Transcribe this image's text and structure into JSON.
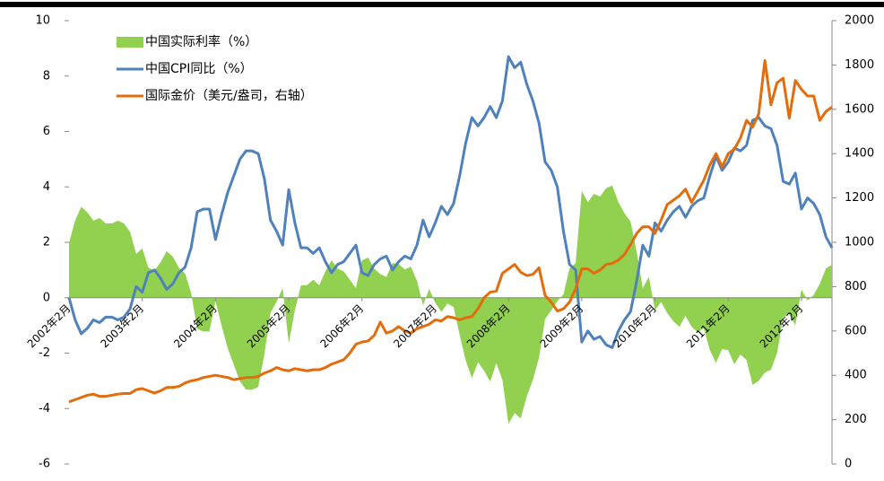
{
  "chart_data": {
    "type": "line",
    "categories": [
      "2002年2月",
      null,
      null,
      null,
      null,
      null,
      null,
      null,
      null,
      null,
      null,
      null,
      "2003年2月",
      null,
      null,
      null,
      null,
      null,
      null,
      null,
      null,
      null,
      null,
      null,
      "2004年2月",
      null,
      null,
      null,
      null,
      null,
      null,
      null,
      null,
      null,
      null,
      null,
      "2005年2月",
      null,
      null,
      null,
      null,
      null,
      null,
      null,
      null,
      null,
      null,
      null,
      "2006年2月",
      null,
      null,
      null,
      null,
      null,
      null,
      null,
      null,
      null,
      null,
      null,
      "2007年2月",
      null,
      null,
      null,
      null,
      null,
      null,
      null,
      null,
      null,
      null,
      null,
      "2008年2月",
      null,
      null,
      null,
      null,
      null,
      null,
      null,
      null,
      null,
      null,
      null,
      "2009年2月",
      null,
      null,
      null,
      null,
      null,
      null,
      null,
      null,
      null,
      null,
      null,
      "2010年2月",
      null,
      null,
      null,
      null,
      null,
      null,
      null,
      null,
      null,
      null,
      null,
      "2011年2月",
      null,
      null,
      null,
      null,
      null,
      null,
      null,
      null,
      null,
      null,
      null,
      "2012年2月",
      null,
      null,
      null,
      null,
      null
    ],
    "series": [
      {
        "name": "中国实际利率（%）",
        "type": "area",
        "color": "#92d050",
        "values": [
          1.98,
          2.78,
          3.28,
          3.08,
          2.78,
          2.88,
          2.68,
          2.68,
          2.78,
          2.68,
          2.38,
          1.58,
          1.78,
          1.08,
          0.98,
          1.28,
          1.68,
          1.48,
          1.08,
          0.88,
          0.18,
          -1.12,
          -1.22,
          -1.22,
          -0.12,
          -1.02,
          -1.82,
          -2.42,
          -3.02,
          -3.32,
          -3.32,
          -3.22,
          -2.05,
          -0.55,
          -0.15,
          0.35,
          -1.65,
          -0.45,
          0.45,
          0.45,
          0.65,
          0.45,
          0.95,
          1.35,
          1.05,
          0.95,
          0.65,
          0.35,
          1.35,
          1.45,
          1.05,
          0.85,
          0.75,
          1.25,
          1.22,
          1.02,
          1.12,
          0.62,
          -0.28,
          0.32,
          -0.18,
          -0.51,
          -0.21,
          -0.34,
          -1.34,
          -2.27,
          -2.9,
          -2.33,
          -2.63,
          -3.03,
          -2.36,
          -2.96,
          -4.56,
          -4.16,
          -4.36,
          -3.56,
          -2.96,
          -2.16,
          -0.76,
          -0.46,
          -0.13,
          0.12,
          1.05,
          1.25,
          3.85,
          3.45,
          3.75,
          3.65,
          3.95,
          4.05,
          3.45,
          3.05,
          2.75,
          1.65,
          0.35,
          0.75,
          -0.45,
          -0.15,
          -0.55,
          -0.85,
          -1.05,
          -0.65,
          -1.05,
          -1.25,
          -1.1,
          -1.9,
          -2.35,
          -1.85,
          -1.9,
          -2.4,
          -2.05,
          -2.25,
          -3.15,
          -3.0,
          -2.7,
          -2.6,
          -2.0,
          -0.7,
          -0.6,
          -1.0,
          0.3,
          -0.1,
          0.1,
          0.5,
          1.05,
          1.2
        ]
      },
      {
        "name": "中国CPI同比（%）",
        "type": "line",
        "color": "#4f81bd",
        "values": [
          0,
          -0.8,
          -1.3,
          -1.1,
          -0.8,
          -0.9,
          -0.7,
          -0.7,
          -0.8,
          -0.7,
          -0.4,
          0.4,
          0.2,
          0.9,
          1.0,
          0.7,
          0.3,
          0.5,
          0.9,
          1.1,
          1.8,
          3.1,
          3.2,
          3.2,
          2.1,
          3.0,
          3.8,
          4.4,
          5.0,
          5.3,
          5.3,
          5.2,
          4.3,
          2.8,
          2.4,
          1.9,
          3.9,
          2.7,
          1.8,
          1.8,
          1.6,
          1.8,
          1.3,
          0.9,
          1.2,
          1.3,
          1.6,
          1.9,
          0.9,
          0.8,
          1.2,
          1.4,
          1.5,
          1.0,
          1.3,
          1.5,
          1.4,
          1.9,
          2.8,
          2.2,
          2.7,
          3.3,
          3.0,
          3.4,
          4.4,
          5.6,
          6.5,
          6.2,
          6.5,
          6.9,
          6.5,
          7.1,
          8.7,
          8.3,
          8.5,
          7.7,
          7.1,
          6.3,
          4.9,
          4.6,
          4.0,
          2.4,
          1.2,
          1.0,
          -1.6,
          -1.2,
          -1.5,
          -1.4,
          -1.7,
          -1.8,
          -1.2,
          -0.8,
          -0.5,
          0.6,
          1.9,
          1.5,
          2.7,
          2.4,
          2.8,
          3.1,
          3.3,
          2.9,
          3.3,
          3.5,
          3.6,
          4.4,
          5.1,
          4.6,
          4.9,
          5.4,
          5.3,
          5.5,
          6.4,
          6.5,
          6.2,
          6.1,
          5.5,
          4.2,
          4.1,
          4.5,
          3.2,
          3.6,
          3.4,
          3.0,
          2.2,
          1.8
        ]
      },
      {
        "name": "国际金价（美元/盎司，右轴）",
        "type": "line",
        "axis": "y2",
        "color": "#e46c0a",
        "values": [
          280,
          290,
          300,
          310,
          315,
          305,
          305,
          310,
          315,
          318,
          318,
          335,
          340,
          330,
          320,
          330,
          345,
          345,
          350,
          365,
          375,
          380,
          390,
          395,
          400,
          395,
          390,
          380,
          385,
          390,
          390,
          395,
          410,
          420,
          435,
          425,
          420,
          430,
          425,
          420,
          425,
          425,
          435,
          450,
          460,
          470,
          500,
          540,
          550,
          555,
          580,
          640,
          590,
          600,
          620,
          600,
          590,
          610,
          620,
          630,
          650,
          645,
          665,
          660,
          650,
          660,
          665,
          700,
          750,
          775,
          780,
          860,
          880,
          900,
          865,
          850,
          855,
          885,
          760,
          730,
          690,
          700,
          730,
          790,
          880,
          880,
          860,
          875,
          900,
          905,
          920,
          945,
          990,
          1040,
          1070,
          1070,
          1040,
          1100,
          1170,
          1190,
          1210,
          1240,
          1180,
          1230,
          1280,
          1350,
          1400,
          1340,
          1400,
          1420,
          1470,
          1550,
          1520,
          1580,
          1820,
          1620,
          1720,
          1740,
          1560,
          1730,
          1690,
          1660,
          1660,
          1550,
          1590,
          1610
        ]
      }
    ],
    "ylim": [
      -6,
      10
    ],
    "yticks": [
      -6,
      -4,
      -2,
      0,
      2,
      4,
      6,
      8,
      10
    ],
    "y2lim": [
      0,
      2000
    ],
    "y2ticks": [
      0,
      200,
      400,
      600,
      800,
      1000,
      1200,
      1400,
      1600,
      1800,
      2000
    ],
    "legend": "upper left"
  }
}
